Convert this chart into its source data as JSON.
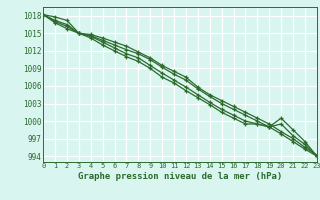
{
  "title": "Graphe pression niveau de la mer (hPa)",
  "bg_color": "#d8f5f0",
  "plot_bg_color": "#d8f5f0",
  "grid_color": "#ffffff",
  "line_color": "#2d6a2d",
  "spine_color": "#2d6a2d",
  "xlim": [
    0,
    23
  ],
  "ylim": [
    993.0,
    1019.5
  ],
  "yticks": [
    994,
    997,
    1000,
    1003,
    1006,
    1009,
    1012,
    1015,
    1018
  ],
  "xticks": [
    0,
    1,
    2,
    3,
    4,
    5,
    6,
    7,
    8,
    9,
    10,
    11,
    12,
    13,
    14,
    15,
    16,
    17,
    18,
    19,
    20,
    21,
    22,
    23
  ],
  "series": [
    [
      1018.2,
      1017.8,
      1017.2,
      1015.0,
      1014.8,
      1014.2,
      1013.5,
      1012.8,
      1011.8,
      1010.8,
      1009.5,
      1008.5,
      1007.5,
      1005.8,
      1004.5,
      1003.5,
      1002.5,
      1001.5,
      1000.5,
      999.5,
      998.2,
      997.0,
      995.5,
      994.2
    ],
    [
      1018.2,
      1017.2,
      1016.5,
      1015.0,
      1014.6,
      1013.8,
      1013.0,
      1012.2,
      1011.5,
      1010.5,
      1009.2,
      1008.0,
      1007.0,
      1005.5,
      1004.2,
      1003.0,
      1002.0,
      1001.0,
      1000.0,
      999.0,
      997.8,
      996.5,
      995.2,
      994.0
    ],
    [
      1018.2,
      1017.0,
      1016.2,
      1015.0,
      1014.5,
      1013.5,
      1012.5,
      1011.5,
      1010.8,
      1009.5,
      1008.2,
      1007.0,
      1005.8,
      1004.5,
      1003.2,
      1002.0,
      1001.0,
      1000.0,
      999.5,
      999.0,
      1000.5,
      998.5,
      996.5,
      994.0
    ],
    [
      1018.2,
      1016.8,
      1015.8,
      1015.0,
      1014.2,
      1013.0,
      1012.0,
      1011.0,
      1010.2,
      1009.0,
      1007.5,
      1006.5,
      1005.2,
      1004.0,
      1002.8,
      1001.5,
      1000.5,
      999.5,
      999.5,
      999.0,
      999.5,
      997.5,
      996.0,
      994.0
    ]
  ],
  "ylabel_fontsize": 5.5,
  "xlabel_fontsize": 5.5,
  "title_fontsize": 6.5
}
